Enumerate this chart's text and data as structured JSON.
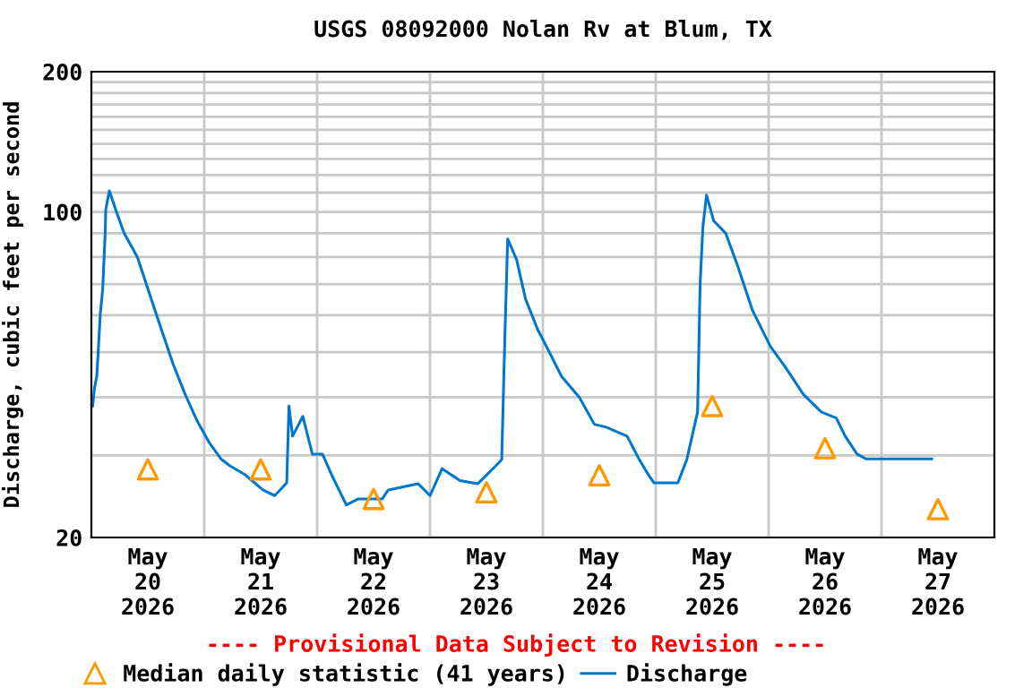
{
  "chart_data": {
    "type": "line",
    "title": "USGS 08092000 Nolan Rv at Blum, TX",
    "ylabel": "Discharge, cubic feet per second",
    "log": "y",
    "grid": true,
    "legend": "bottom",
    "annotations": [
      "---- Provisional Data Subject to Revision ----"
    ],
    "xlim": [
      "2026-05-20T00:00",
      "2026-05-28T00:00"
    ],
    "xticks": [
      {
        "value": "2026-05-20T12:00",
        "label": "May\n20\n2026"
      },
      {
        "value": "2026-05-21T00:00",
        "label": null
      },
      {
        "value": "2026-05-21T12:00",
        "label": "May\n21\n2026"
      },
      {
        "value": "2026-05-22T00:00",
        "label": null
      },
      {
        "value": "2026-05-22T12:00",
        "label": "May\n22\n2026"
      },
      {
        "value": "2026-05-23T00:00",
        "label": null
      },
      {
        "value": "2026-05-23T12:00",
        "label": "May\n23\n2026"
      },
      {
        "value": "2026-05-24T00:00",
        "label": null
      },
      {
        "value": "2026-05-24T12:00",
        "label": "May\n24\n2026"
      },
      {
        "value": "2026-05-25T00:00",
        "label": null
      },
      {
        "value": "2026-05-25T12:00",
        "label": "May\n25\n2026"
      },
      {
        "value": "2026-05-26T00:00",
        "label": null
      },
      {
        "value": "2026-05-26T12:00",
        "label": "May\n26\n2026"
      },
      {
        "value": "2026-05-27T00:00",
        "label": null
      },
      {
        "value": "2026-05-27T12:00",
        "label": "May\n27\n2026"
      }
    ],
    "ylim": [
      20,
      200
    ],
    "yticks": [
      20,
      {
        "value": 30,
        "label": null
      },
      {
        "value": 40,
        "label": null
      },
      {
        "value": 50,
        "label": null
      },
      {
        "value": 60,
        "label": null
      },
      {
        "value": 70,
        "label": null
      },
      {
        "value": 80,
        "label": null
      },
      {
        "value": 90,
        "label": null
      },
      100,
      {
        "value": 110,
        "label": null
      },
      {
        "value": 120,
        "label": null
      },
      {
        "value": 130,
        "label": null
      },
      {
        "value": 140,
        "label": null
      },
      {
        "value": 150,
        "label": null
      },
      {
        "value": 160,
        "label": null
      },
      {
        "value": 170,
        "label": null
      },
      {
        "value": 180,
        "label": null
      },
      {
        "value": 190,
        "label": null
      },
      200
    ],
    "series": [
      {
        "name": "Median daily statistic (41 years)",
        "type": "scatter",
        "marker": "triangle",
        "color": "#ff9900",
        "x": [
          "2026-05-20T12:00",
          "2026-05-21T12:00",
          "2026-05-22T12:00",
          "2026-05-23T12:00",
          "2026-05-24T12:00",
          "2026-05-25T12:00",
          "2026-05-26T12:00",
          "2026-05-27T12:00"
        ],
        "values": [
          28,
          28,
          24.2,
          25,
          27.2,
          38.3,
          31.1,
          23
        ]
      },
      {
        "name": "Discharge",
        "line_style": "solid",
        "color": "#0077cc",
        "x": [
          "2026-05-20T00:16",
          "2026-05-20T00:39",
          "2026-05-20T01:09",
          "2026-05-20T01:31",
          "2026-05-20T01:54",
          "2026-05-20T02:24",
          "2026-05-20T02:56",
          "2026-05-20T03:03",
          "2026-05-20T03:49",
          "2026-05-20T05:20",
          "2026-05-20T06:58",
          "2026-05-20T09:47",
          "2026-05-20T12:18",
          "2026-05-20T14:52",
          "2026-05-20T17:25",
          "2026-05-20T19:56",
          "2026-05-20T22:29",
          "2026-05-21T01:02",
          "2026-05-21T03:33",
          "2026-05-21T05:27",
          "2026-05-21T08:39",
          "2026-05-21T12:28",
          "2026-05-21T14:59",
          "2026-05-21T17:32",
          "2026-05-21T18:01",
          "2026-05-21T18:47",
          "2026-05-21T20:58",
          "2026-05-21T22:59",
          "2026-05-22T01:09",
          "2026-05-22T03:03",
          "2026-05-22T06:13",
          "2026-05-22T08:46",
          "2026-05-22T13:50",
          "2026-05-22T15:08",
          "2026-05-22T21:28",
          "2026-05-23T00:01",
          "2026-05-23T02:34",
          "2026-05-23T06:22",
          "2026-05-23T10:11",
          "2026-05-23T13:59",
          "2026-05-23T15:15",
          "2026-05-23T15:54",
          "2026-05-23T16:31",
          "2026-05-23T18:25",
          "2026-05-23T20:19",
          "2026-05-23T22:52",
          "2026-05-24T01:25",
          "2026-05-24T03:56",
          "2026-05-24T07:45",
          "2026-05-24T10:57",
          "2026-05-24T13:28",
          "2026-05-24T17:54",
          "2026-05-24T20:30",
          "2026-05-24T22:24",
          "2026-05-24T23:38",
          "2026-05-25T04:42",
          "2026-05-25T06:36",
          "2026-05-25T08:54",
          "2026-05-25T09:26",
          "2026-05-25T10:02",
          "2026-05-25T10:48",
          "2026-05-25T12:19",
          "2026-05-25T14:52",
          "2026-05-25T17:25",
          "2026-05-25T20:35",
          "2026-05-26T00:24",
          "2026-05-26T03:34",
          "2026-05-26T07:23",
          "2026-05-26T11:12",
          "2026-05-26T14:23",
          "2026-05-26T16:17",
          "2026-05-26T18:48",
          "2026-05-26T20:42",
          "2026-05-27T10:41"
        ],
        "values": [
          38.3,
          41.8,
          44.4,
          51.4,
          60.5,
          68,
          90,
          101,
          111,
          100,
          90,
          80,
          67,
          56,
          47,
          40.6,
          35.6,
          32,
          29.5,
          28.5,
          27.3,
          25.3,
          24.6,
          26.2,
          38.3,
          33,
          36.4,
          30.2,
          30.2,
          27.3,
          23.5,
          24.2,
          24.2,
          25.3,
          26.1,
          24.6,
          28.1,
          26.5,
          26.1,
          28.5,
          29.4,
          53,
          87.5,
          79,
          65,
          56,
          49.9,
          44.4,
          40,
          35,
          34.5,
          33,
          29.4,
          27.3,
          26.2,
          26.2,
          29.4,
          37.2,
          70,
          93,
          108.6,
          95.7,
          90,
          76.6,
          61.4,
          51.4,
          46.4,
          40.6,
          37.2,
          36.1,
          33,
          30.2,
          29.5,
          29.5
        ]
      }
    ]
  }
}
